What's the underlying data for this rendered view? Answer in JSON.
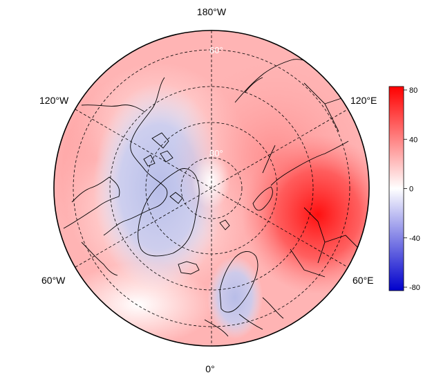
{
  "map": {
    "projection": "north polar stereographic",
    "longitude_labels": {
      "top": "180°W",
      "upper_left": "120°W",
      "upper_right": "120°E",
      "lower_left": "60°W",
      "lower_right": "60°E",
      "bottom": "0°"
    },
    "latitude_labels": [
      "60°",
      "80°"
    ],
    "colors": {
      "min": "#0000cc",
      "mid": "#ffffff",
      "max": "#ff0000",
      "coastline": "#000000",
      "graticule": "#000000"
    },
    "anomaly_field": {
      "description_units": "colorbar units",
      "centers": [
        {
          "region": "Siberia / Central Asia",
          "value": 70
        },
        {
          "region": "Arctic Ocean (Eurasian side)",
          "value": 35
        },
        {
          "region": "Greenland / Canadian Arctic",
          "value": -20
        },
        {
          "region": "North Atlantic",
          "value": 5
        },
        {
          "region": "North Pacific",
          "value": 25
        }
      ]
    }
  },
  "colorbar": {
    "range": [
      -80,
      80
    ],
    "ticks": [
      "80",
      "40",
      "0",
      "-40",
      "-80"
    ]
  }
}
